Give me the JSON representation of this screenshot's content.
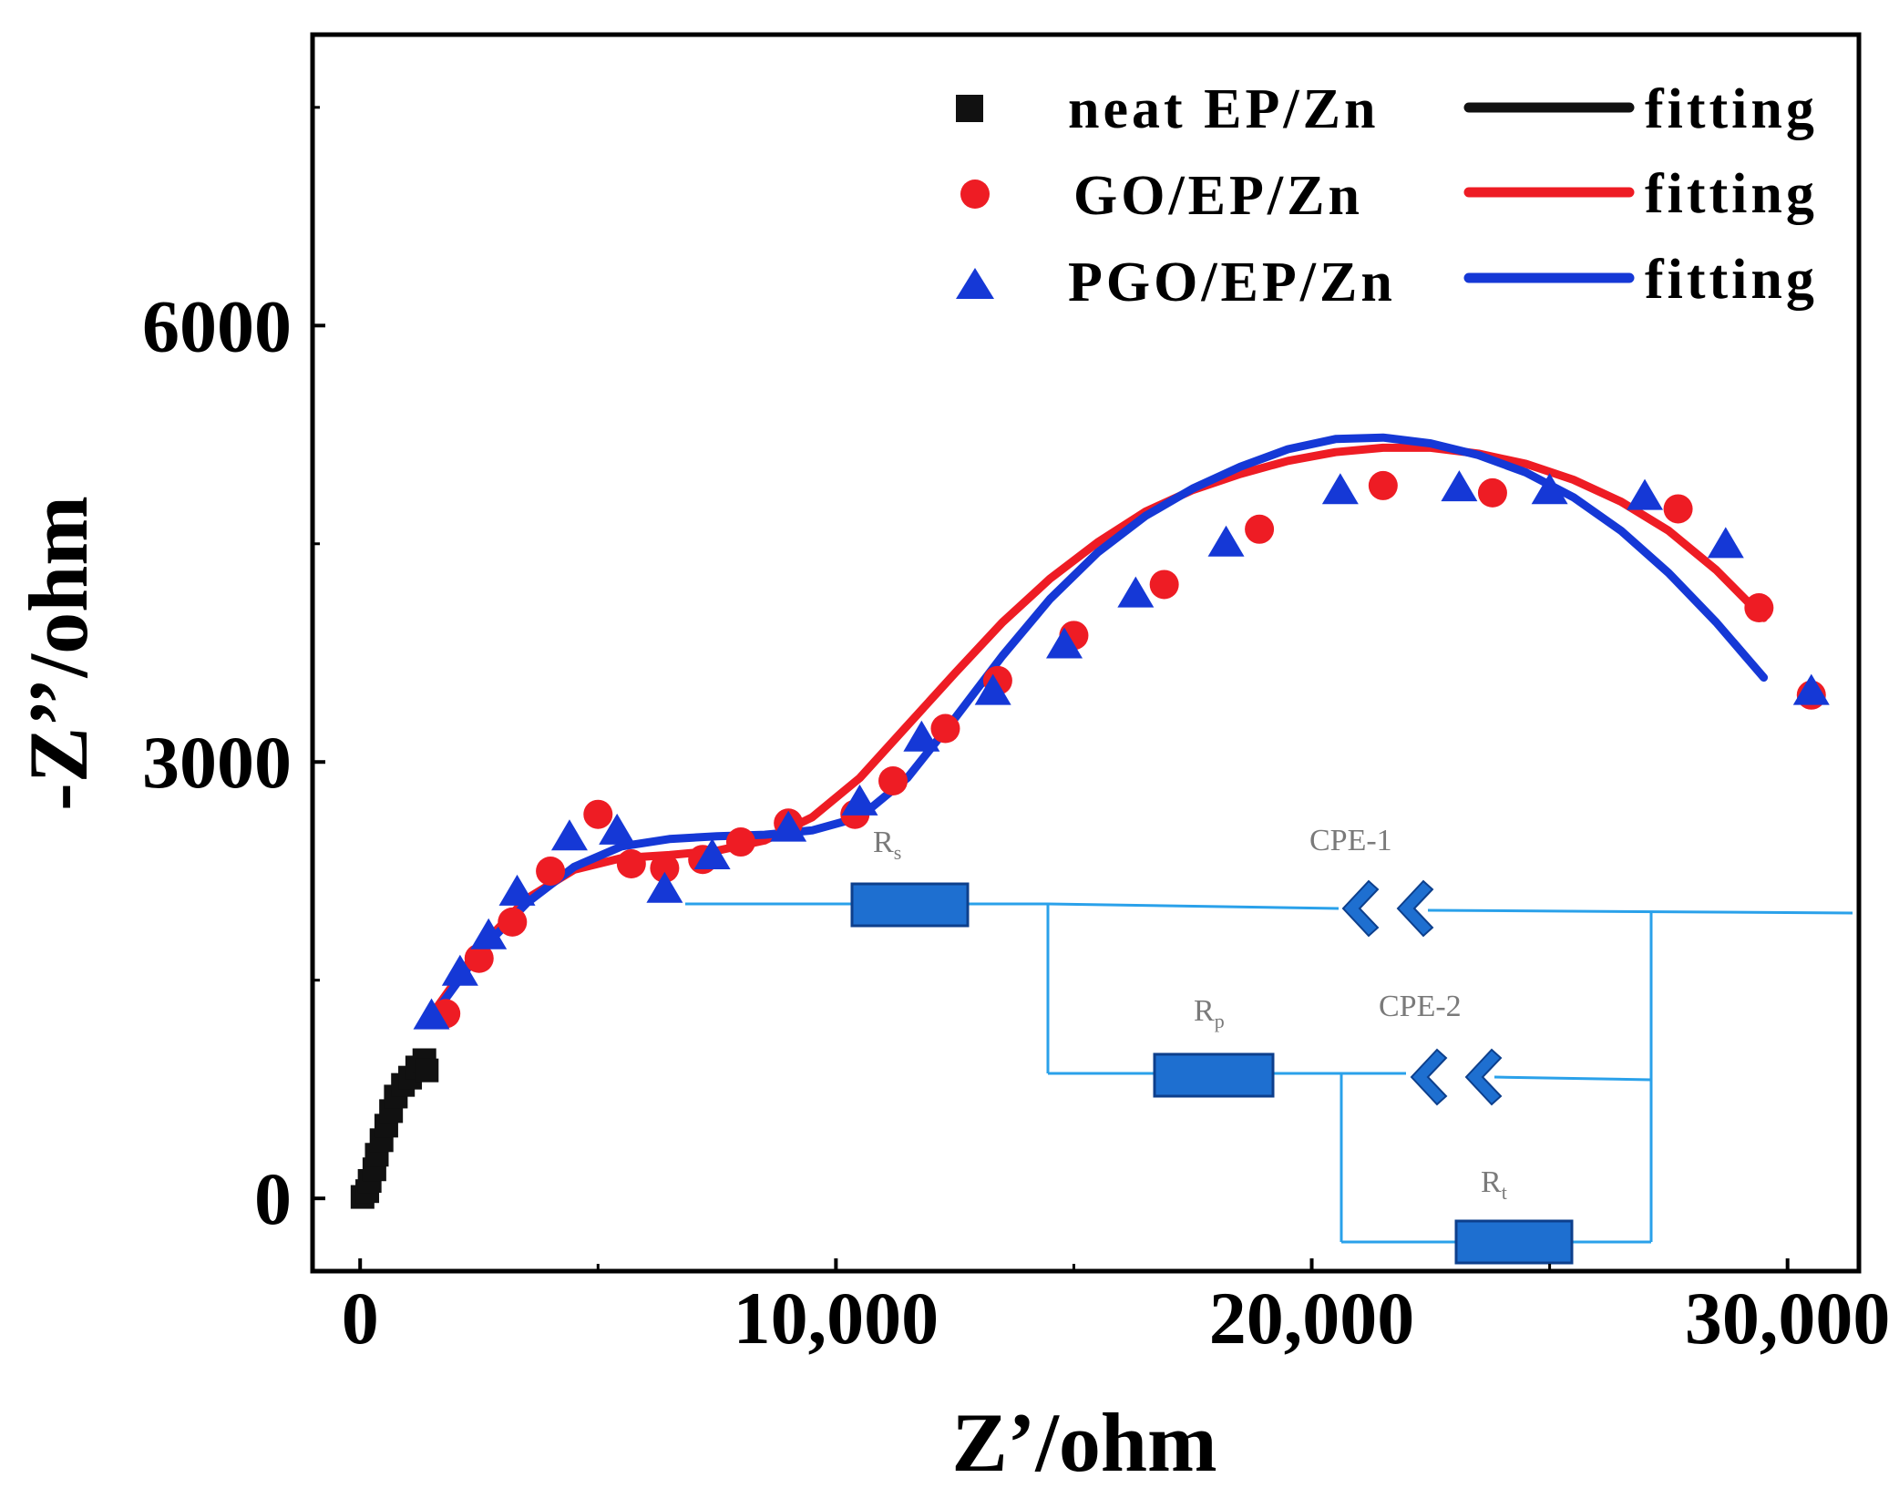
{
  "chart_data": {
    "type": "scatter",
    "title": "",
    "xlabel": "Z’/ohm",
    "ylabel": "-Z’’/ohm",
    "xlim": [
      -1000,
      31500
    ],
    "ylim": [
      -500,
      8000
    ],
    "xticks": [
      0,
      10000,
      20000,
      30000
    ],
    "xtick_labels": [
      "0",
      "10,000",
      "20,000",
      "30,000"
    ],
    "yticks": [
      0,
      3000,
      6000
    ],
    "ytick_labels": [
      "0",
      "3000",
      "6000"
    ],
    "grid": false,
    "legend_position": "top-right",
    "series": [
      {
        "name": "neat EP/Zn",
        "kind": "points",
        "marker": "square",
        "color": "#111111",
        "points": [
          [
            50,
            10
          ],
          [
            150,
            50
          ],
          [
            200,
            120
          ],
          [
            300,
            200
          ],
          [
            350,
            300
          ],
          [
            450,
            400
          ],
          [
            550,
            500
          ],
          [
            650,
            600
          ],
          [
            750,
            700
          ],
          [
            900,
            780
          ],
          [
            1050,
            830
          ],
          [
            1200,
            900
          ],
          [
            1350,
            950
          ],
          [
            1400,
            880
          ]
        ]
      },
      {
        "name": "GO/EP/Zn",
        "kind": "points",
        "marker": "circle",
        "color": "#ee1c24",
        "points": [
          [
            1800,
            1270
          ],
          [
            2500,
            1650
          ],
          [
            3200,
            1900
          ],
          [
            4000,
            2250
          ],
          [
            5000,
            2640
          ],
          [
            5700,
            2300
          ],
          [
            6400,
            2270
          ],
          [
            7200,
            2330
          ],
          [
            8000,
            2450
          ],
          [
            9000,
            2580
          ],
          [
            10400,
            2640
          ],
          [
            11200,
            2870
          ],
          [
            12300,
            3230
          ],
          [
            13400,
            3560
          ],
          [
            15000,
            3870
          ],
          [
            16900,
            4220
          ],
          [
            18900,
            4600
          ],
          [
            21500,
            4900
          ],
          [
            23800,
            4850
          ],
          [
            27700,
            4740
          ],
          [
            29400,
            4060
          ],
          [
            30500,
            3460
          ]
        ]
      },
      {
        "name": "PGO/EP/Zn",
        "kind": "points",
        "marker": "triangle",
        "color": "#1538d6",
        "points": [
          [
            1500,
            1250
          ],
          [
            2100,
            1550
          ],
          [
            2700,
            1800
          ],
          [
            3300,
            2100
          ],
          [
            4400,
            2480
          ],
          [
            5400,
            2520
          ],
          [
            6400,
            2120
          ],
          [
            7400,
            2350
          ],
          [
            9000,
            2540
          ],
          [
            10500,
            2720
          ],
          [
            11800,
            3160
          ],
          [
            13300,
            3480
          ],
          [
            14800,
            3800
          ],
          [
            16300,
            4150
          ],
          [
            18200,
            4500
          ],
          [
            20600,
            4860
          ],
          [
            23100,
            4880
          ],
          [
            25000,
            4860
          ],
          [
            27000,
            4820
          ],
          [
            28700,
            4490
          ],
          [
            30500,
            3480
          ]
        ]
      },
      {
        "name": "fitting",
        "kind": "line",
        "color": "#111111",
        "points": [
          [
            0,
            0
          ],
          [
            200,
            250
          ],
          [
            500,
            500
          ],
          [
            800,
            700
          ],
          [
            1100,
            850
          ],
          [
            1400,
            930
          ]
        ]
      },
      {
        "name": "fitting",
        "kind": "line",
        "color": "#ee1c24",
        "points": [
          [
            1500,
            1260
          ],
          [
            2500,
            1720
          ],
          [
            3500,
            2060
          ],
          [
            4500,
            2260
          ],
          [
            5500,
            2340
          ],
          [
            6500,
            2360
          ],
          [
            7500,
            2390
          ],
          [
            8500,
            2460
          ],
          [
            9500,
            2620
          ],
          [
            10500,
            2890
          ],
          [
            11500,
            3250
          ],
          [
            12500,
            3610
          ],
          [
            13500,
            3960
          ],
          [
            14500,
            4260
          ],
          [
            15500,
            4510
          ],
          [
            16500,
            4720
          ],
          [
            17500,
            4870
          ],
          [
            18500,
            4980
          ],
          [
            19500,
            5070
          ],
          [
            20500,
            5130
          ],
          [
            21500,
            5160
          ],
          [
            22500,
            5160
          ],
          [
            23500,
            5120
          ],
          [
            24500,
            5050
          ],
          [
            25500,
            4940
          ],
          [
            26500,
            4790
          ],
          [
            27500,
            4590
          ],
          [
            28500,
            4320
          ],
          [
            29500,
            3990
          ]
        ]
      },
      {
        "name": "fitting",
        "kind": "line",
        "color": "#1538d6",
        "points": [
          [
            1500,
            1240
          ],
          [
            2500,
            1690
          ],
          [
            3500,
            2030
          ],
          [
            4500,
            2280
          ],
          [
            5500,
            2420
          ],
          [
            6500,
            2470
          ],
          [
            7500,
            2490
          ],
          [
            8500,
            2500
          ],
          [
            9500,
            2530
          ],
          [
            10500,
            2620
          ],
          [
            11500,
            2890
          ],
          [
            12500,
            3300
          ],
          [
            13500,
            3730
          ],
          [
            14500,
            4120
          ],
          [
            15500,
            4440
          ],
          [
            16500,
            4690
          ],
          [
            17500,
            4880
          ],
          [
            18500,
            5030
          ],
          [
            19500,
            5150
          ],
          [
            20500,
            5220
          ],
          [
            21500,
            5230
          ],
          [
            22500,
            5190
          ],
          [
            23500,
            5110
          ],
          [
            24500,
            4990
          ],
          [
            25500,
            4820
          ],
          [
            26500,
            4590
          ],
          [
            27500,
            4300
          ],
          [
            28500,
            3960
          ],
          [
            29500,
            3580
          ]
        ]
      }
    ],
    "inset_circuit_labels": [
      "R",
      "s",
      "CPE-1",
      "R",
      "p",
      "CPE-2",
      "R",
      "t"
    ]
  }
}
